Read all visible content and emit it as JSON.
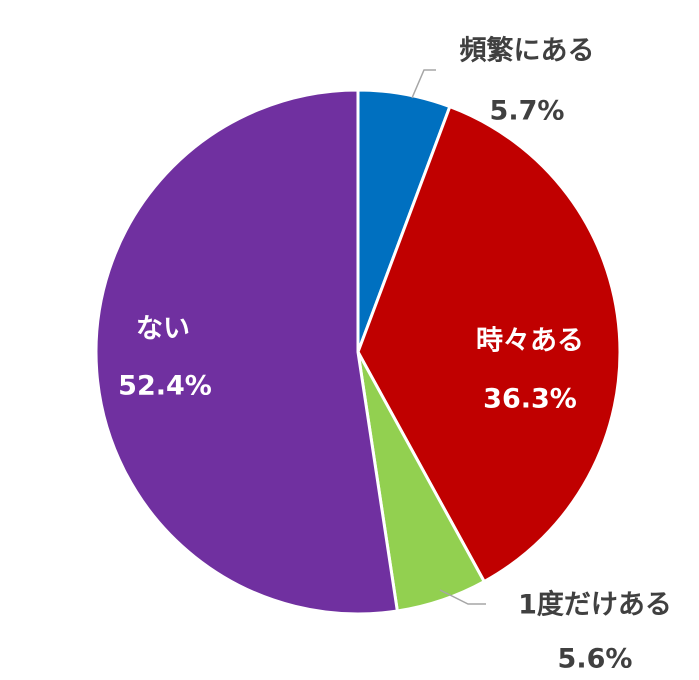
{
  "chart_data": {
    "type": "pie",
    "categories": [
      "頻繁にある",
      "時々ある",
      "1度だけある",
      "ない"
    ],
    "values": [
      5.7,
      36.3,
      5.6,
      52.4
    ],
    "value_labels": [
      "5.7%",
      "36.3%",
      "5.6%",
      "52.4%"
    ],
    "colors": [
      "#0070c0",
      "#c00000",
      "#92d050",
      "#7030a0"
    ]
  }
}
